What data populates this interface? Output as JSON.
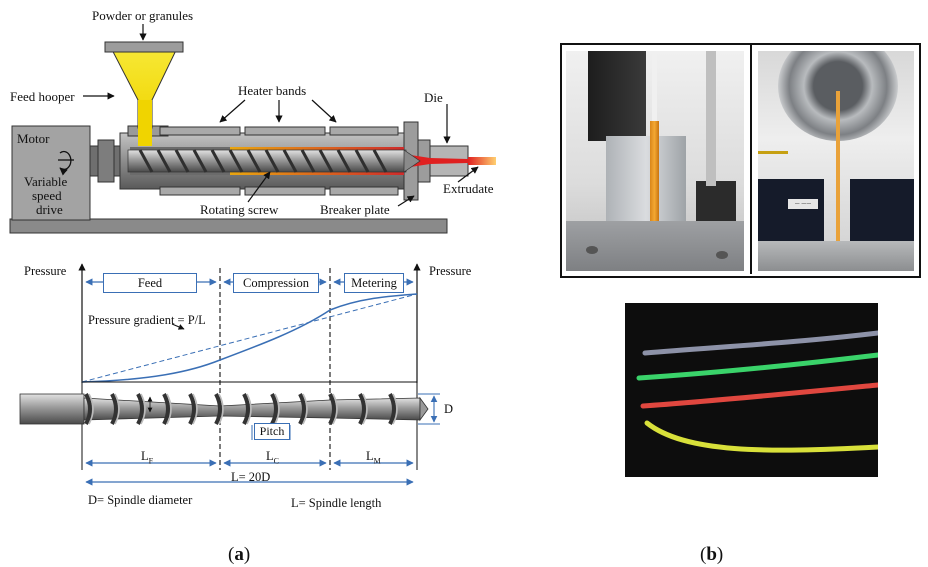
{
  "extruder": {
    "powder": "Powder or granules",
    "feed_hooper": "Feed hooper",
    "heater_bands": "Heater bands",
    "die": "Die",
    "motor": "Motor",
    "variable_speed": "Variable",
    "speed": "speed",
    "drive": "drive",
    "extrudate": "Extrudate",
    "rotating_screw": "Rotating screw",
    "breaker_plate": "Breaker plate"
  },
  "screw": {
    "pressure_left": "Pressure",
    "pressure_right": "Pressure",
    "feed": "Feed",
    "compression": "Compression",
    "metering": "Metering",
    "gradient": "Pressure gradient = P/L",
    "d_label": "D",
    "pitch": "Pitch",
    "lf_main": "L",
    "lf_sub": "F",
    "lc_main": "L",
    "lc_sub": "C",
    "lm_main": "L",
    "lm_sub": "M",
    "total": "L= 20D",
    "d_def": "D= Spindle diameter",
    "l_def": "L= Spindle length"
  },
  "photos": {
    "tag": "— ——"
  },
  "captions": {
    "a_open": "(",
    "a_letter": "a",
    "a_close": ")",
    "b_open": "(",
    "b_letter": "b",
    "b_close": ")"
  },
  "colors": {
    "accent_blue": "#3a6fb5",
    "hopper_yellow": "#f5e21a",
    "filament_green": "#3ad36a",
    "filament_red": "#e0473f",
    "filament_yellow": "#d8e03a"
  }
}
